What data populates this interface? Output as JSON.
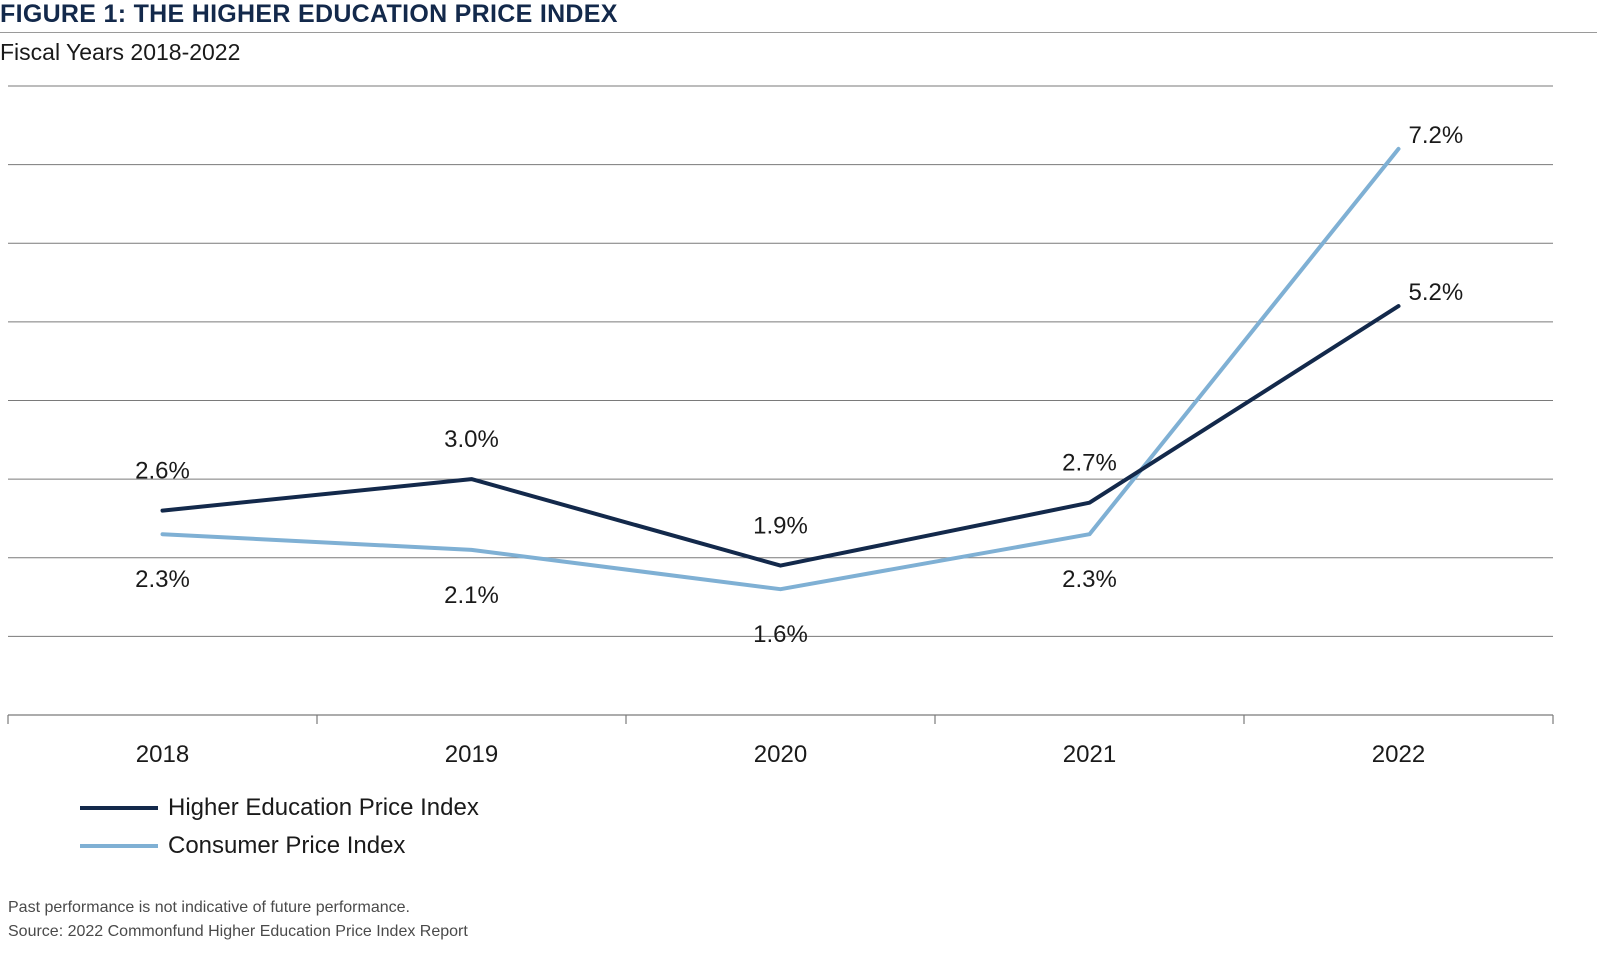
{
  "title": "FIGURE 1: THE HIGHER EDUCATION PRICE INDEX",
  "subtitle": "Fiscal Years 2018-2022",
  "colors": {
    "hepi": "#13294b",
    "cpi": "#7fb0d4",
    "grid": "#7a7a7a",
    "title": "#13294b"
  },
  "chart_data": {
    "type": "line",
    "title": "FIGURE 1: THE HIGHER EDUCATION PRICE INDEX",
    "subtitle": "Fiscal Years 2018-2022",
    "categories": [
      "2018",
      "2019",
      "2020",
      "2021",
      "2022"
    ],
    "series": [
      {
        "name": "Higher Education Price Index",
        "values": [
          2.6,
          3.0,
          1.9,
          2.7,
          5.2
        ],
        "labels": [
          "2.6%",
          "3.0%",
          "1.9%",
          "2.7%",
          "5.2%"
        ]
      },
      {
        "name": "Consumer Price Index",
        "values": [
          2.3,
          2.1,
          1.6,
          2.3,
          7.2
        ],
        "labels": [
          "2.3%",
          "2.1%",
          "1.6%",
          "2.3%",
          "7.2%"
        ]
      }
    ],
    "ylim": [
      0,
      8
    ],
    "grid": true,
    "legend": "bottom-left"
  },
  "footnotes": {
    "disclaimer": "Past performance is not indicative of future performance.",
    "source": "Source: 2022 Commonfund Higher Education Price Index Report"
  }
}
